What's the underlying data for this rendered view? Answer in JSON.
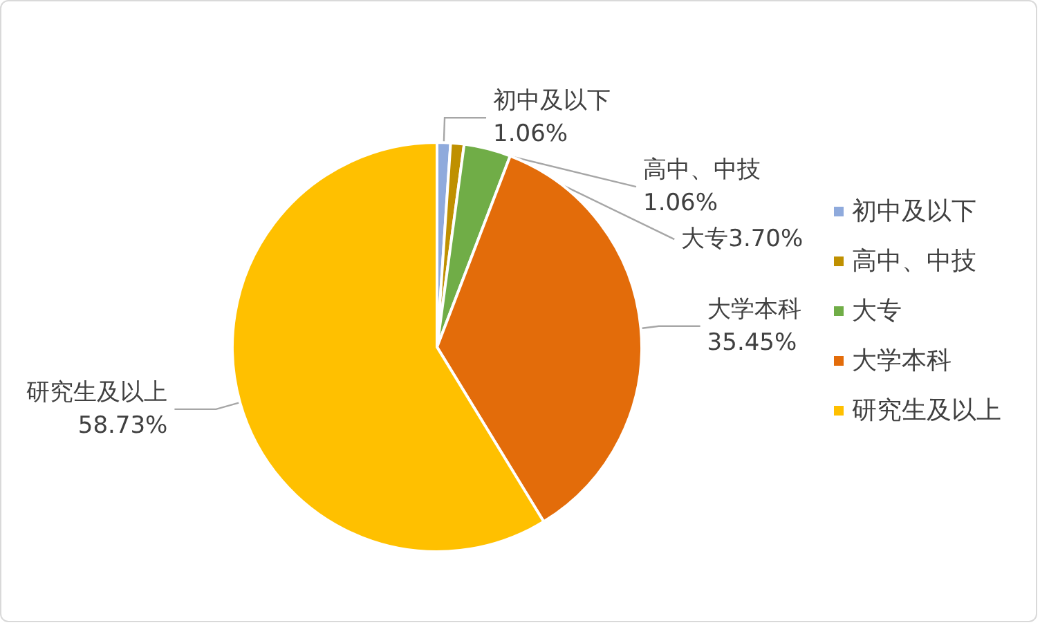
{
  "chart_data": {
    "type": "pie",
    "categories": [
      "初中及以下",
      "高中、中技",
      "大专",
      "大学本科",
      "研究生及以上"
    ],
    "values": [
      1.06,
      1.06,
      3.7,
      35.45,
      58.73
    ],
    "value_labels": [
      "1.06%",
      "1.06%",
      "3.70%",
      "35.45%",
      "58.73%"
    ],
    "colors": [
      "#8faadc",
      "#bf9000",
      "#70ad47",
      "#e36c0a",
      "#ffc000"
    ],
    "legend": "right"
  }
}
